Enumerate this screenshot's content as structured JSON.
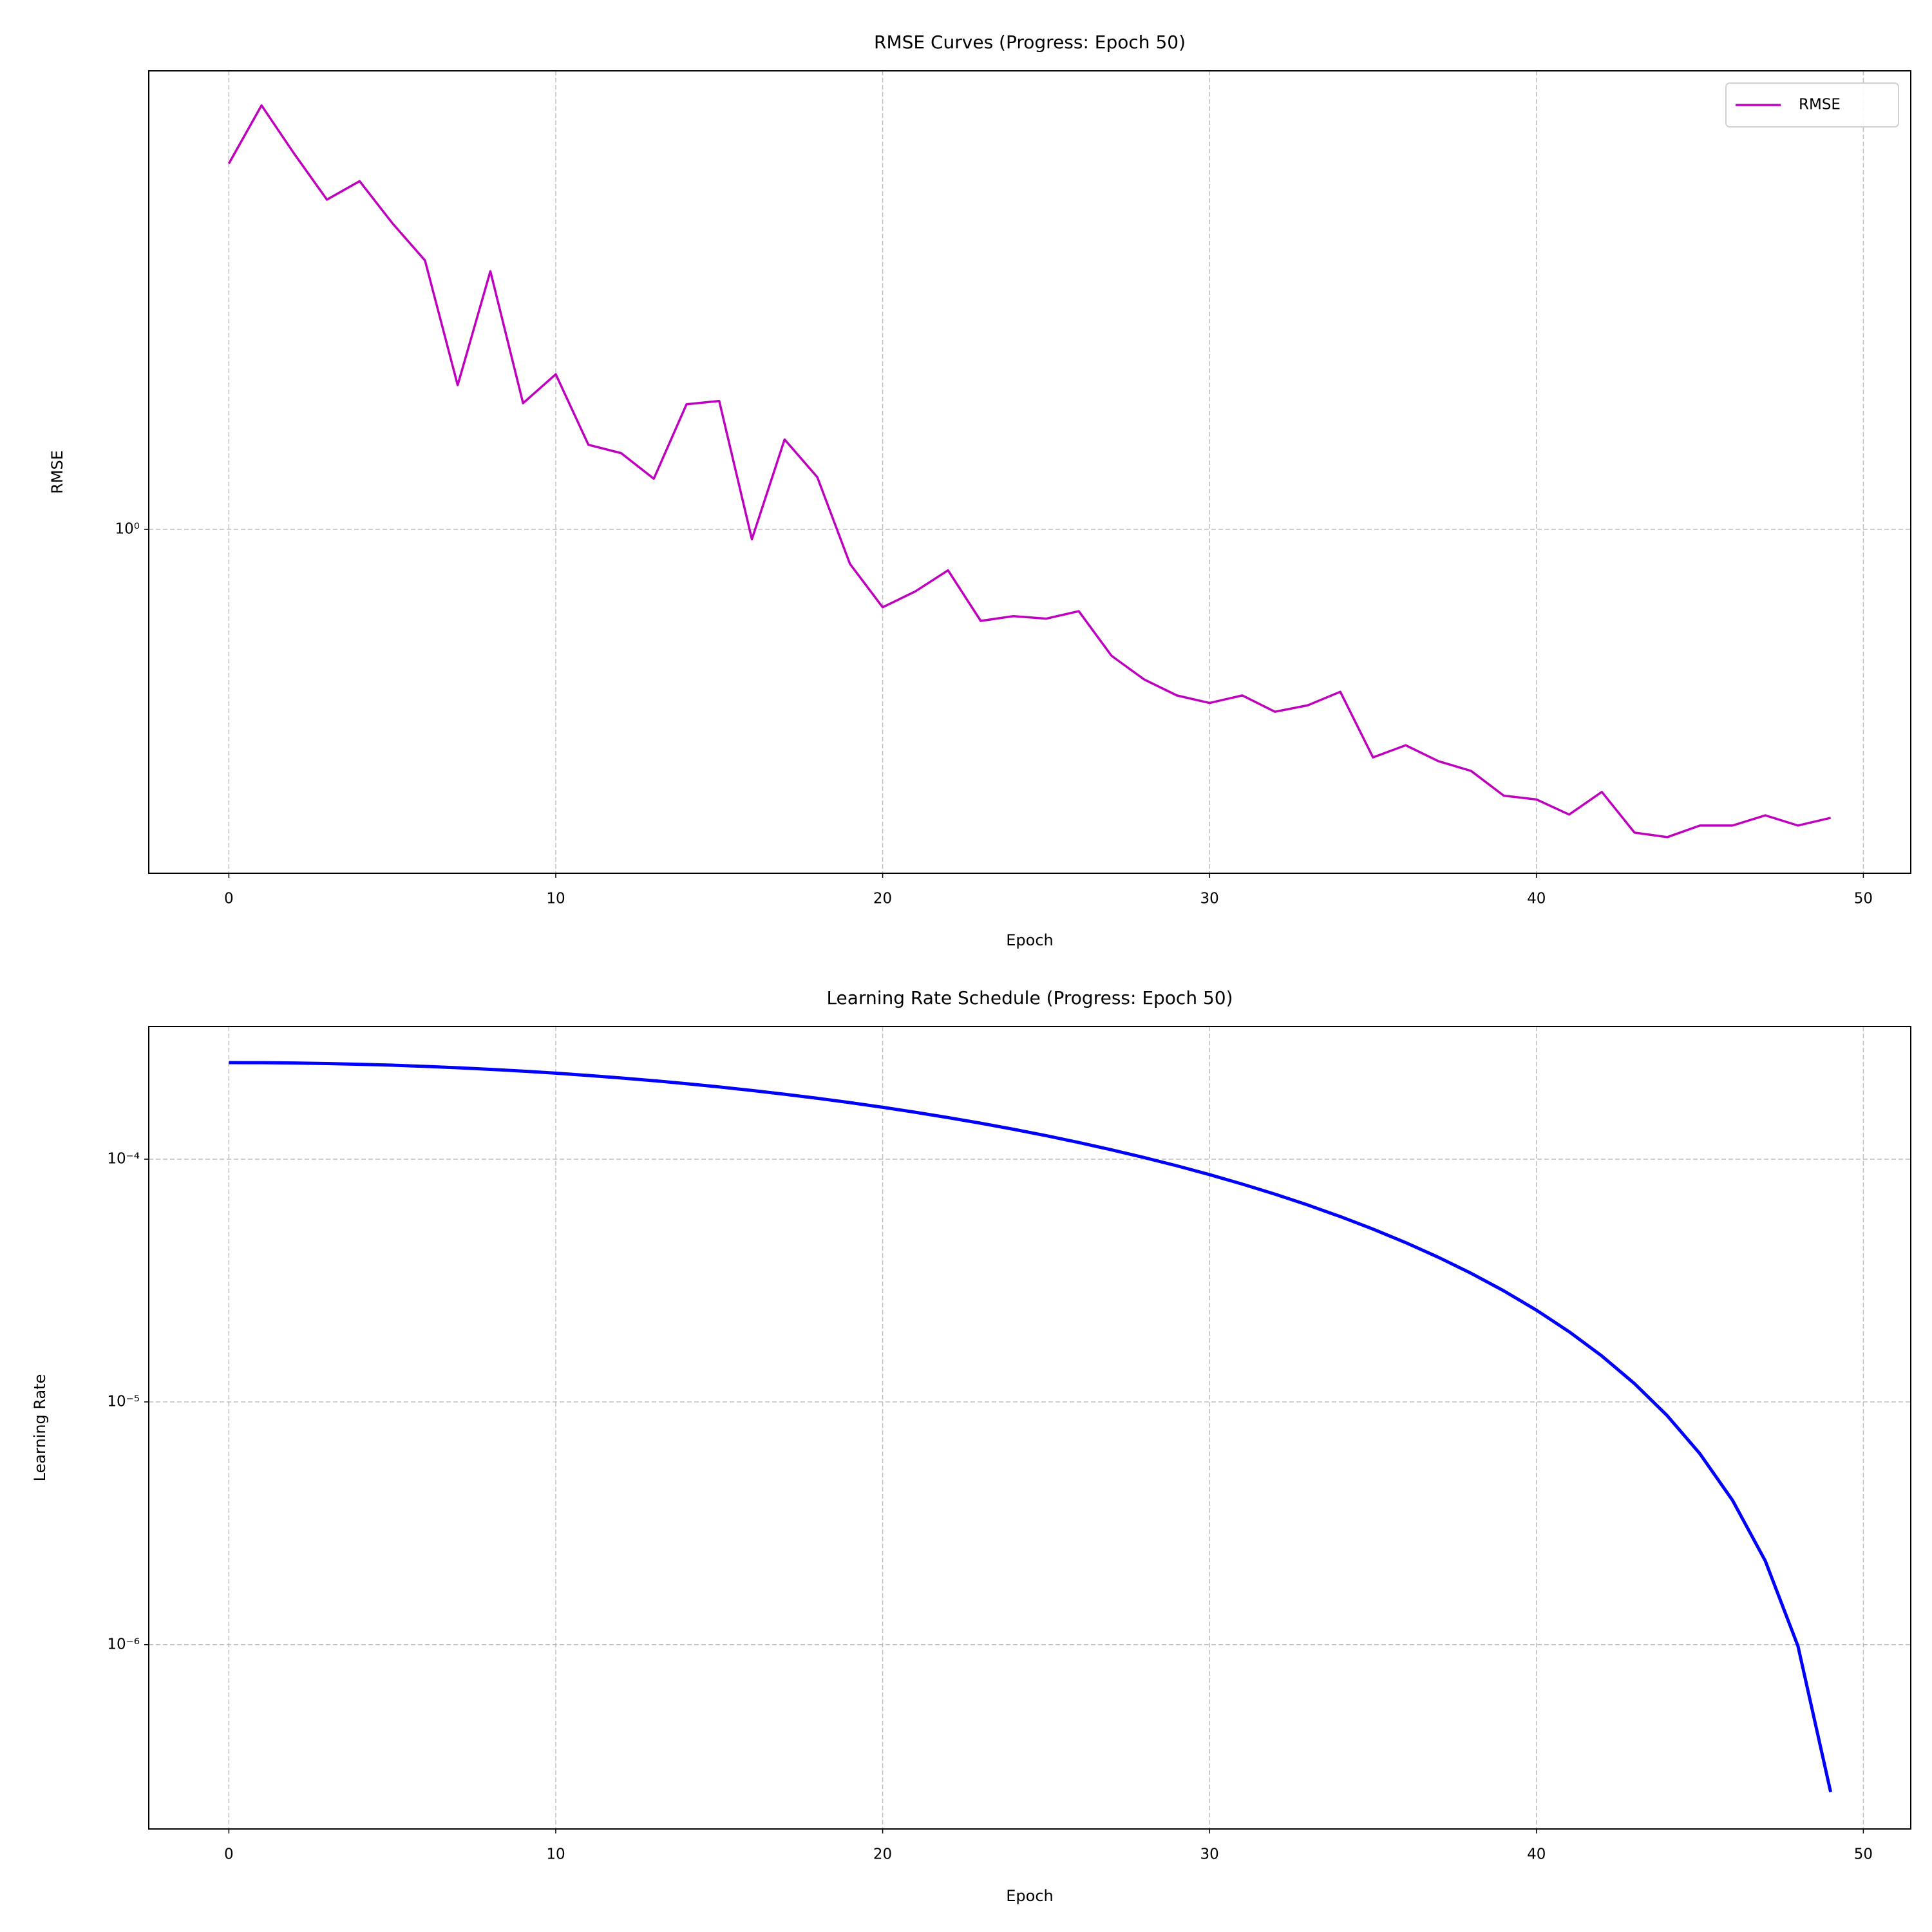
{
  "chart_data": [
    {
      "type": "line",
      "title": "RMSE Curves (Progress: Epoch 50)",
      "xlabel": "Epoch",
      "ylabel": "RMSE",
      "x": [
        0,
        1,
        2,
        3,
        4,
        5,
        6,
        7,
        8,
        9,
        10,
        11,
        12,
        13,
        14,
        15,
        16,
        17,
        18,
        19,
        20,
        21,
        22,
        23,
        24,
        25,
        26,
        27,
        28,
        29,
        30,
        31,
        32,
        33,
        34,
        35,
        36,
        37,
        38,
        39,
        40,
        41,
        42,
        43,
        44,
        45,
        46,
        47,
        48,
        49
      ],
      "series": [
        {
          "name": "RMSE",
          "color": "#bf00bf",
          "values": [
            5.95,
            7.9,
            6.24,
            4.99,
            5.46,
            4.45,
            3.71,
            2.02,
            3.52,
            1.85,
            2.13,
            1.51,
            1.45,
            1.28,
            1.84,
            1.87,
            0.953,
            1.55,
            1.29,
            0.845,
            0.684,
            0.739,
            0.819,
            0.64,
            0.655,
            0.647,
            0.671,
            0.54,
            0.481,
            0.445,
            0.429,
            0.445,
            0.411,
            0.424,
            0.453,
            0.329,
            0.349,
            0.323,
            0.308,
            0.273,
            0.268,
            0.249,
            0.278,
            0.228,
            0.223,
            0.236,
            0.236,
            0.248,
            0.236,
            0.245
          ]
        }
      ],
      "xlim": [
        -2.45,
        51.45
      ],
      "xticks": [
        0,
        10,
        20,
        30,
        40,
        50
      ],
      "ylim": [
        0.187,
        9.35
      ],
      "yticks": [
        {
          "value": 1,
          "label": "10⁰"
        }
      ],
      "yscale": "log",
      "grid": true,
      "legend": "upper right"
    },
    {
      "type": "line",
      "title": "Learning Rate Schedule (Progress: Epoch 50)",
      "xlabel": "Epoch",
      "ylabel": "Learning Rate",
      "x": [
        0,
        1,
        2,
        3,
        4,
        5,
        6,
        7,
        8,
        9,
        10,
        11,
        12,
        13,
        14,
        15,
        16,
        17,
        18,
        19,
        20,
        21,
        22,
        23,
        24,
        25,
        26,
        27,
        28,
        29,
        30,
        31,
        32,
        33,
        34,
        35,
        36,
        37,
        38,
        39,
        40,
        41,
        42,
        43,
        44,
        45,
        46,
        47,
        48,
        49
      ],
      "series": [
        {
          "color": "#0000ff",
          "values": [
            0.00025,
            0.000249753,
            0.000249014,
            0.000247786,
            0.000246073,
            0.000243882,
            0.000241222,
            0.000238103,
            0.000234538,
            0.000230541,
            0.000226127,
            0.000221314,
            0.000216121,
            0.000210568,
            0.000204678,
            0.000198473,
            0.000191978,
            0.000185219,
            0.000178222,
            0.000171016,
            0.000163627,
            0.000156086,
            0.000148423,
            0.000140667,
            0.000132849,
            0.000125,
            0.000117151,
            0.000109333,
            0.000101577,
            9.3914e-05,
            8.6373e-05,
            7.8984e-05,
            7.1778e-05,
            6.4781e-05,
            5.8022e-05,
            5.1527e-05,
            4.5322e-05,
            3.9432e-05,
            3.3879e-05,
            2.8686e-05,
            2.3873e-05,
            1.9459e-05,
            1.5462e-05,
            1.1897e-05,
            8.778e-06,
            6.118e-06,
            3.927e-06,
            2.214e-06,
            9.86e-07,
            2.47e-07
          ]
        }
      ],
      "xlim": [
        -2.45,
        51.45
      ],
      "xticks": [
        0,
        10,
        20,
        30,
        40,
        50
      ],
      "ylim": [
        1.74e-07,
        0.000352
      ],
      "yticks": [
        {
          "value": 0.0001,
          "label": "10⁻⁴"
        },
        {
          "value": 1e-05,
          "label": "10⁻⁵"
        },
        {
          "value": 1e-06,
          "label": "10⁻⁶"
        }
      ],
      "yscale": "log",
      "grid": true
    }
  ]
}
